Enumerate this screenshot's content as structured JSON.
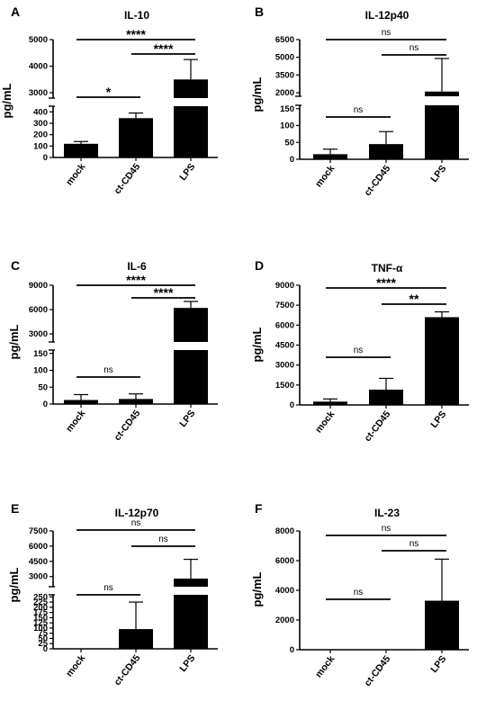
{
  "figure": {
    "categories": [
      "mock",
      "ct-CD45",
      "LPS"
    ],
    "y_unit": "pg/mL"
  },
  "chart_data": [
    {
      "type": "bar",
      "panel": "A",
      "title": "IL-10",
      "categories": [
        "mock",
        "ct-CD45",
        "LPS"
      ],
      "values": [
        120,
        345,
        3500
      ],
      "errors": [
        140,
        390,
        4250
      ],
      "ylabel": "pg/mL",
      "broken_axis": true,
      "lower": {
        "range": [
          0,
          450
        ],
        "ticks": [
          0,
          100,
          200,
          300,
          400
        ]
      },
      "upper": {
        "range": [
          2800,
          5000
        ],
        "ticks": [
          3000,
          4000,
          5000
        ]
      },
      "significance": [
        {
          "from": 0,
          "to": 2,
          "label": "****"
        },
        {
          "from": 1,
          "to": 2,
          "label": "****"
        },
        {
          "from": 0,
          "to": 1,
          "label": "*"
        }
      ]
    },
    {
      "type": "bar",
      "panel": "B",
      "title": "IL-12p40",
      "categories": [
        "mock",
        "ct-CD45",
        "LPS"
      ],
      "values": [
        15,
        45,
        2100
      ],
      "errors": [
        30,
        82,
        4900
      ],
      "ylabel": "pg/mL",
      "broken_axis": true,
      "lower": {
        "range": [
          0,
          160
        ],
        "ticks": [
          0,
          50,
          100,
          150
        ]
      },
      "upper": {
        "range": [
          1700,
          6500
        ],
        "ticks": [
          2000,
          3500,
          5000,
          6500
        ]
      },
      "significance": [
        {
          "from": 0,
          "to": 2,
          "label": "ns"
        },
        {
          "from": 1,
          "to": 2,
          "label": "ns"
        },
        {
          "from": 0,
          "to": 1,
          "label": "ns"
        }
      ]
    },
    {
      "type": "bar",
      "panel": "C",
      "title": "IL-6",
      "categories": [
        "mock",
        "ct-CD45",
        "LPS"
      ],
      "values": [
        12,
        15,
        6200
      ],
      "errors": [
        28,
        30,
        7000
      ],
      "ylabel": "pg/mL",
      "broken_axis": true,
      "lower": {
        "range": [
          0,
          160
        ],
        "ticks": [
          0,
          50,
          100,
          150
        ]
      },
      "upper": {
        "range": [
          2000,
          9000
        ],
        "ticks": [
          3000,
          6000,
          9000
        ]
      },
      "significance": [
        {
          "from": 0,
          "to": 2,
          "label": "****"
        },
        {
          "from": 1,
          "to": 2,
          "label": "****"
        },
        {
          "from": 0,
          "to": 1,
          "label": "ns"
        }
      ]
    },
    {
      "type": "bar",
      "panel": "D",
      "title": "TNF-α",
      "categories": [
        "mock",
        "ct-CD45",
        "LPS"
      ],
      "values": [
        250,
        1150,
        6600
      ],
      "errors": [
        450,
        2000,
        7000
      ],
      "ylabel": "pg/mL",
      "broken_axis": false,
      "range": [
        0,
        9000
      ],
      "ticks": [
        0,
        1500,
        3000,
        4500,
        6000,
        7500,
        9000
      ],
      "significance": [
        {
          "from": 0,
          "to": 2,
          "label": "****"
        },
        {
          "from": 1,
          "to": 2,
          "label": "**"
        },
        {
          "from": 0,
          "to": 1,
          "label": "ns"
        }
      ]
    },
    {
      "type": "bar",
      "panel": "E",
      "title": "IL-12p70",
      "categories": [
        "mock",
        "ct-CD45",
        "LPS"
      ],
      "values": [
        0,
        95,
        2800
      ],
      "errors": [
        0,
        225,
        4700
      ],
      "ylabel": "pg/mL",
      "broken_axis": true,
      "lower": {
        "range": [
          0,
          260
        ],
        "ticks": [
          0,
          25,
          50,
          75,
          100,
          125,
          150,
          175,
          200,
          225,
          250
        ]
      },
      "upper": {
        "range": [
          2000,
          7500
        ],
        "ticks": [
          3000,
          4500,
          6000,
          7500
        ]
      },
      "significance": [
        {
          "from": 0,
          "to": 2,
          "label": "ns"
        },
        {
          "from": 1,
          "to": 2,
          "label": "ns"
        },
        {
          "from": 0,
          "to": 1,
          "label": "ns"
        }
      ]
    },
    {
      "type": "bar",
      "panel": "F",
      "title": "IL-23",
      "categories": [
        "mock",
        "ct-CD45",
        "LPS"
      ],
      "values": [
        0,
        0,
        3300
      ],
      "errors": [
        0,
        0,
        6100
      ],
      "ylabel": "pg/mL",
      "broken_axis": false,
      "range": [
        0,
        8000
      ],
      "ticks": [
        0,
        2000,
        4000,
        6000,
        8000
      ],
      "significance": [
        {
          "from": 0,
          "to": 2,
          "label": "ns"
        },
        {
          "from": 1,
          "to": 2,
          "label": "ns"
        },
        {
          "from": 0,
          "to": 1,
          "label": "ns"
        }
      ]
    }
  ]
}
